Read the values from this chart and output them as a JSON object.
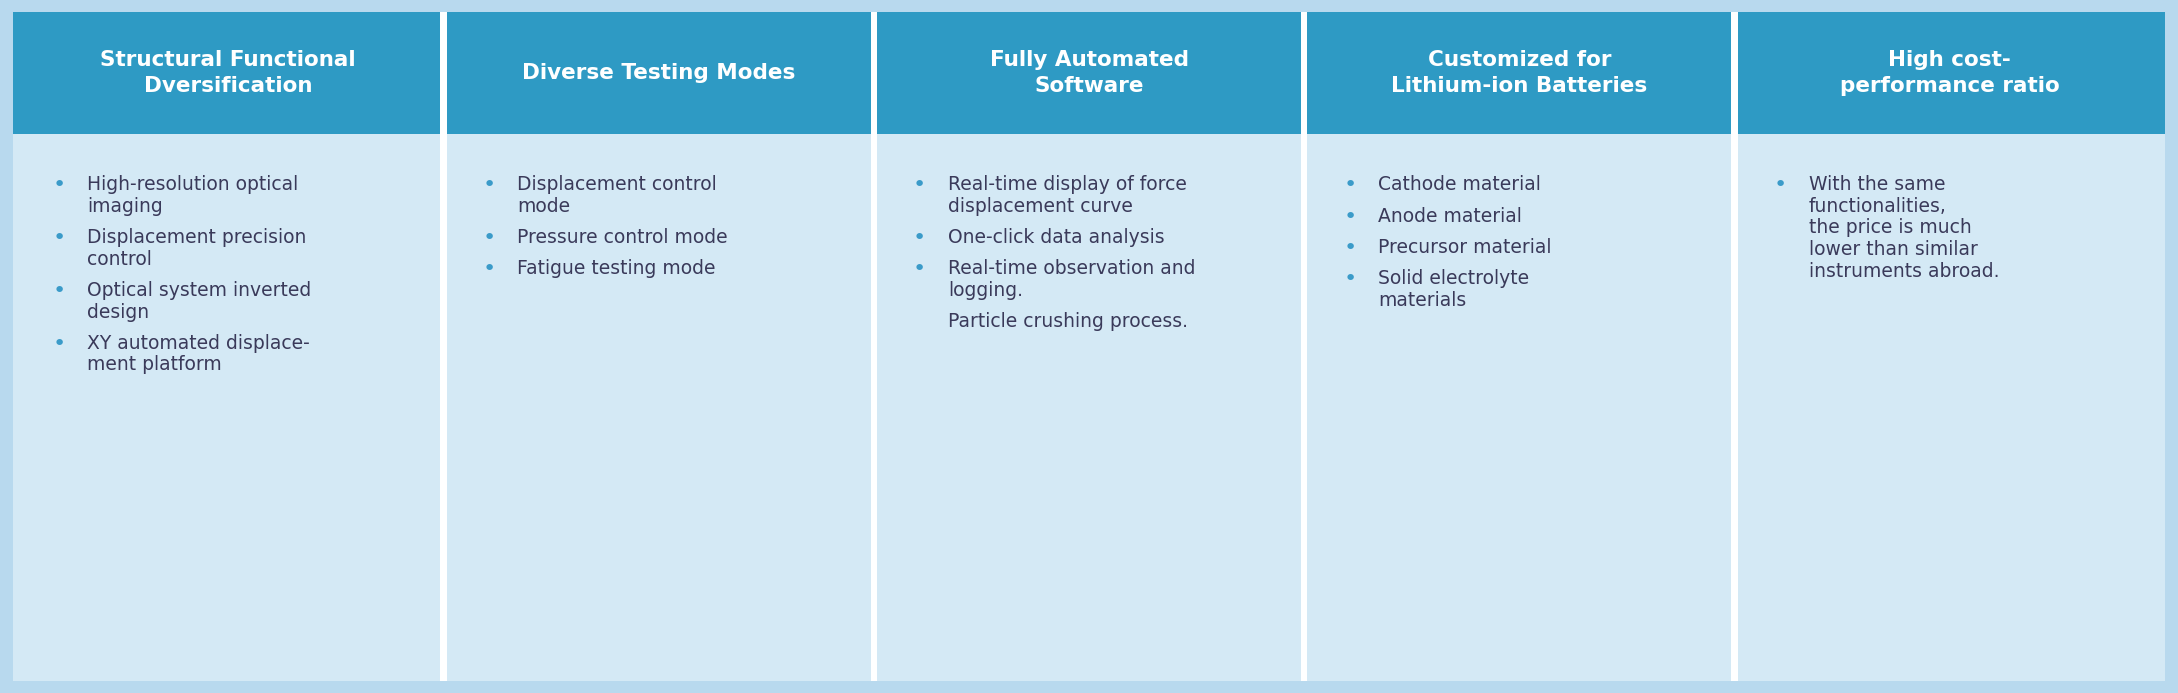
{
  "columns": [
    {
      "header": "Structural Functional\nDversification",
      "items": [
        {
          "bullet": true,
          "lines": [
            "High-resolution optical",
            "imaging"
          ]
        },
        {
          "bullet": true,
          "lines": [
            "Displacement precision",
            "control"
          ]
        },
        {
          "bullet": true,
          "lines": [
            "Optical system inverted",
            "design"
          ]
        },
        {
          "bullet": true,
          "lines": [
            "XY automated displace-",
            "ment platform"
          ]
        }
      ]
    },
    {
      "header": "Diverse Testing Modes",
      "items": [
        {
          "bullet": true,
          "lines": [
            "Displacement control",
            "mode"
          ]
        },
        {
          "bullet": true,
          "lines": [
            "Pressure control mode"
          ]
        },
        {
          "bullet": true,
          "lines": [
            "Fatigue testing mode"
          ]
        }
      ]
    },
    {
      "header": "Fully Automated\nSoftware",
      "items": [
        {
          "bullet": true,
          "lines": [
            "Real-time display of force",
            "displacement curve"
          ]
        },
        {
          "bullet": true,
          "lines": [
            "One-click data analysis"
          ]
        },
        {
          "bullet": true,
          "lines": [
            "Real-time observation and",
            "logging."
          ]
        },
        {
          "bullet": false,
          "lines": [
            "Particle crushing process."
          ]
        }
      ]
    },
    {
      "header": "Customized for\nLithium-ion Batteries",
      "items": [
        {
          "bullet": true,
          "lines": [
            "Cathode material"
          ]
        },
        {
          "bullet": true,
          "lines": [
            "Anode material"
          ]
        },
        {
          "bullet": true,
          "lines": [
            "Precursor material"
          ]
        },
        {
          "bullet": true,
          "lines": [
            "Solid electrolyte",
            "materials"
          ]
        }
      ]
    },
    {
      "header": "High cost-\nperformance ratio",
      "items": [
        {
          "bullet": true,
          "lines": [
            "With the same",
            "functionalities,",
            "the price is much",
            "lower than similar",
            "instruments abroad."
          ]
        }
      ]
    }
  ],
  "header_bg_color": "#2e9ac4",
  "header_text_color": "#ffffff",
  "body_bg_color": "#d4e9f5",
  "body_text_color": "#3a3a5a",
  "bullet_color": "#3a9bc9",
  "divider_color": "#ffffff",
  "outer_bg_color": "#b8d9ee",
  "header_fontsize": 15.5,
  "body_fontsize": 13.5,
  "bullet_fontsize": 16,
  "fig_width": 21.78,
  "fig_height": 6.93,
  "dpi": 100
}
